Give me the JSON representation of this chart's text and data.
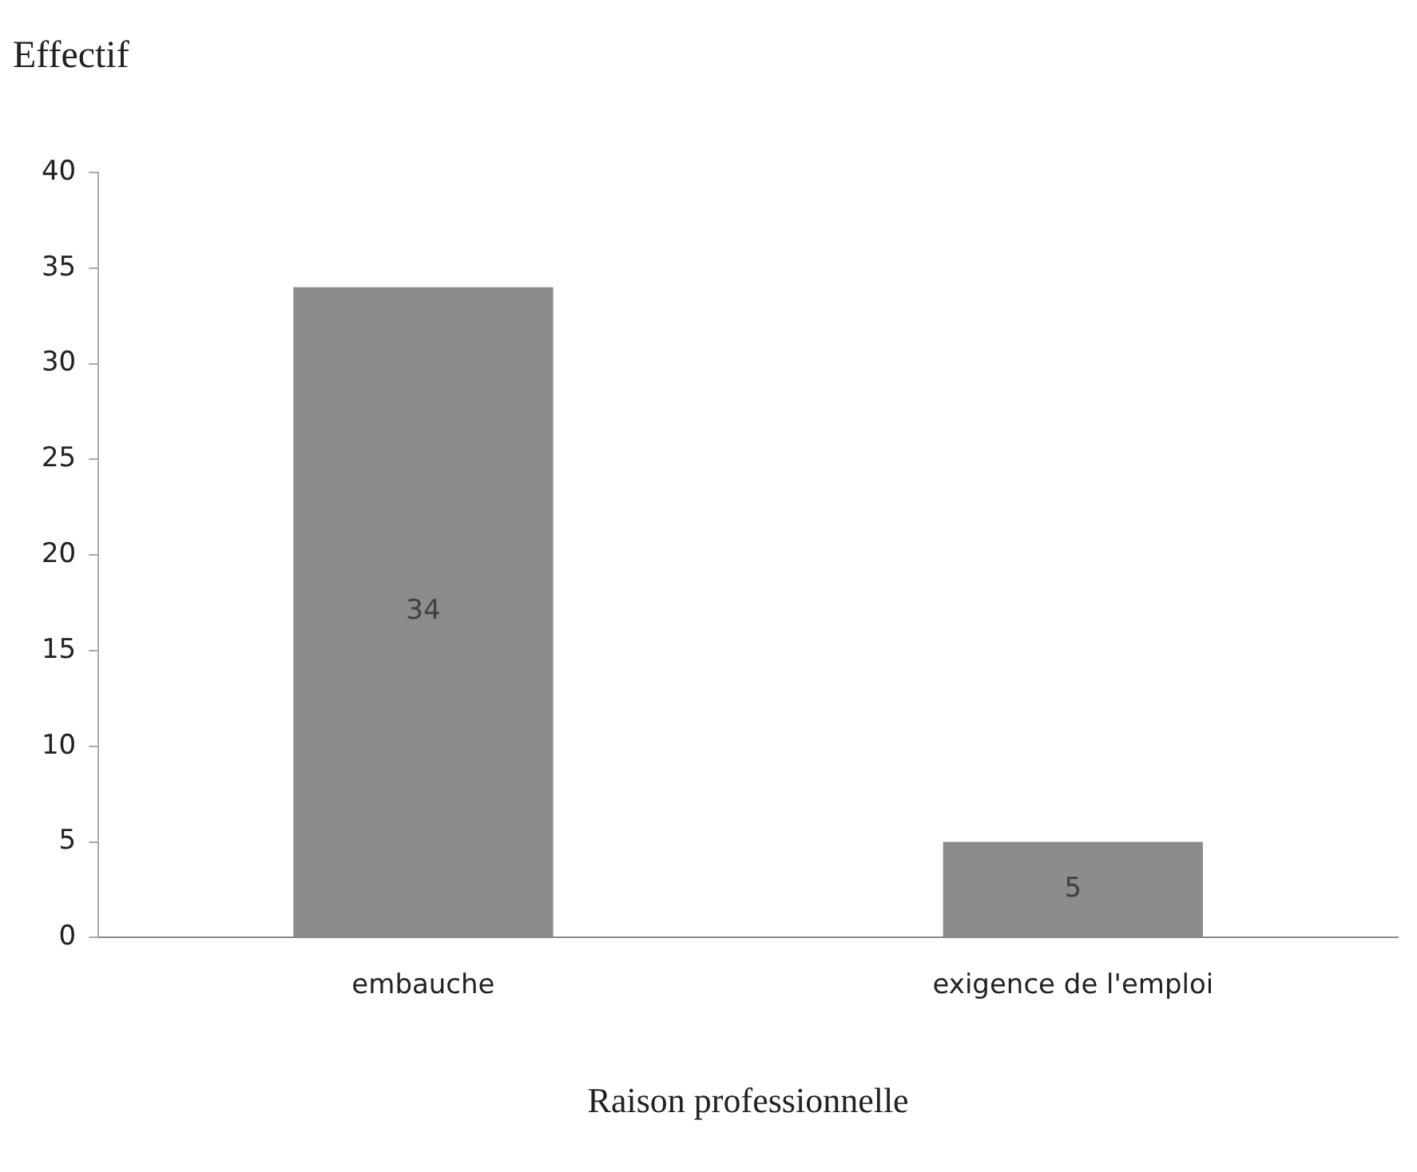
{
  "chart_data": {
    "type": "bar",
    "xlabel": "Raison professionnelle",
    "ylabel": "Effectif",
    "categories": [
      "embauche",
      "exigence de l'emploi"
    ],
    "values": [
      34,
      5
    ],
    "color": "#8c8c8c",
    "ylim": [
      0,
      40
    ],
    "yticks": [
      0,
      5,
      10,
      15,
      20,
      25,
      30,
      35,
      40
    ],
    "grid": false,
    "legend": false,
    "data_labels": true
  }
}
